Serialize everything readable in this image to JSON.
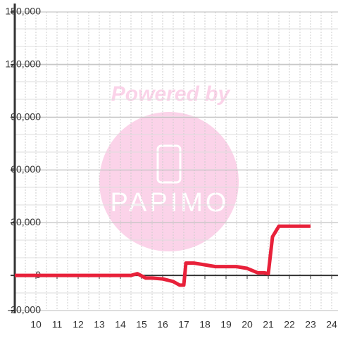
{
  "chart_data": {
    "type": "line",
    "annotations": [
      "Powered by",
      "PAPIMO"
    ],
    "x": [
      9,
      14.5,
      14.8,
      15.2,
      15.5,
      16,
      16.5,
      16.8,
      17,
      17.1,
      17.5,
      18,
      18.5,
      19,
      19.5,
      20,
      20.5,
      20.8,
      21,
      21.2,
      21.5,
      23
    ],
    "series": [
      {
        "color": "#e8213a",
        "values": [
          0,
          0,
          1000,
          -1500,
          -1500,
          -2000,
          -3500,
          -5500,
          -5500,
          7000,
          7000,
          6000,
          5000,
          5000,
          5000,
          4000,
          1500,
          1500,
          1000,
          22000,
          28000,
          28000
        ]
      }
    ],
    "xlim": [
      9,
      24.3
    ],
    "xticks": [
      10,
      11,
      12,
      13,
      14,
      15,
      16,
      17,
      18,
      19,
      20,
      21,
      22,
      23,
      24
    ],
    "ylim": [
      -20000,
      150000
    ],
    "yticks": [
      {
        "value": -20000,
        "label": "-20,000"
      },
      0,
      {
        "value": 30000,
        "label": "30,000"
      },
      {
        "value": 60000,
        "label": "60,000"
      },
      {
        "value": 90000,
        "label": "90,000"
      },
      {
        "value": 120000,
        "label": "120,000"
      },
      {
        "value": 150000,
        "label": "150,000"
      }
    ],
    "grid": true
  }
}
